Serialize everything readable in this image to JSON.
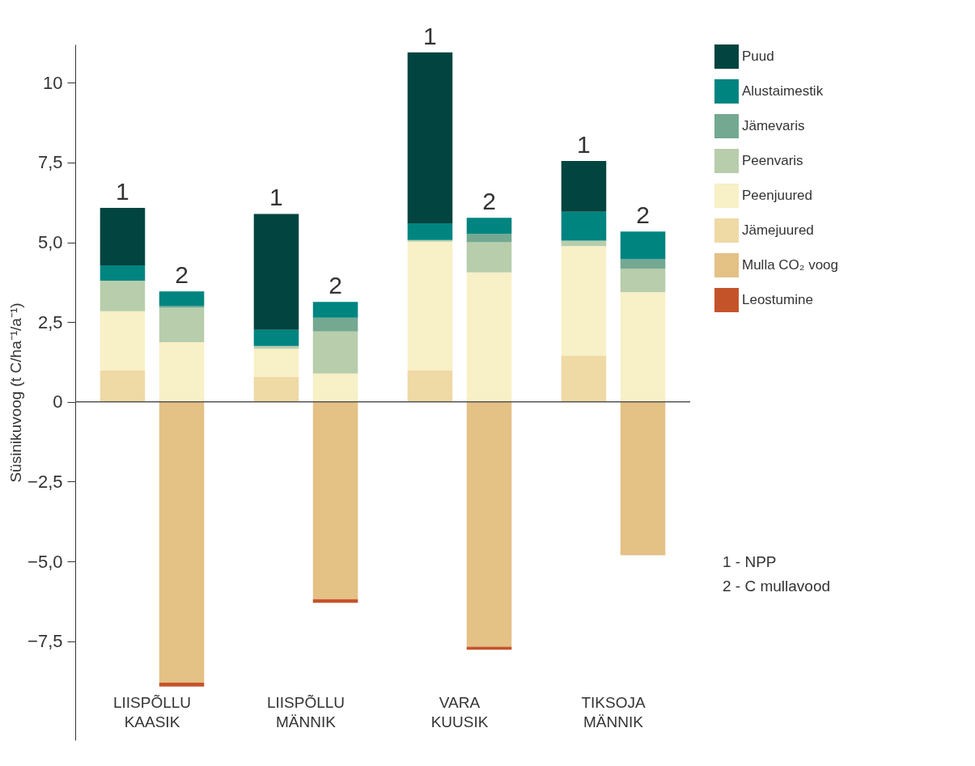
{
  "chart_data": {
    "type": "bar",
    "stacked": true,
    "ylabel": "Süsinikuvoog (t C/ha⁻¹/a⁻¹)",
    "categories": [
      "1",
      "2",
      "1",
      "2",
      "1",
      "2",
      "1",
      "2"
    ],
    "series": [
      {
        "name": "Jämejuured",
        "color": "#efd9a5",
        "values": [
          0.99,
          0,
          0.79,
          0,
          0.99,
          0,
          1.44,
          0
        ]
      },
      {
        "name": "Peenjuured",
        "color": "#f8f0c6",
        "values": [
          1.85,
          1.87,
          0.87,
          0.89,
          4.03,
          4.06,
          3.44,
          3.44
        ]
      },
      {
        "name": "Peenvaris",
        "color": "#b7cdab",
        "values": [
          0.96,
          1.08,
          0.09,
          1.32,
          0.05,
          0.94,
          0.17,
          0.74
        ]
      },
      {
        "name": "Jämevaris",
        "color": "#74a890",
        "values": [
          0,
          0.05,
          0,
          0.43,
          0,
          0.26,
          0,
          0.29
        ]
      },
      {
        "name": "Alustaimestik",
        "color": "#008480",
        "values": [
          0.48,
          0.46,
          0.51,
          0.49,
          0.53,
          0.51,
          0.91,
          0.87
        ]
      },
      {
        "name": "Puud",
        "color": "#02443f",
        "values": [
          1.8,
          0,
          3.63,
          0,
          5.35,
          0,
          1.59,
          0
        ]
      },
      {
        "name": "Mulla CO₂ voog",
        "color": "#e4c185",
        "values": [
          0,
          -8.8,
          0,
          -6.18,
          0,
          -7.67,
          0,
          -4.81
        ]
      },
      {
        "name": "Leostumine",
        "color": "#c5532a",
        "values": [
          0,
          -0.12,
          0,
          -0.12,
          0,
          -0.1,
          0,
          0
        ]
      }
    ],
    "ylim": [
      -10.6,
      11.2
    ],
    "yticks": [
      {
        "value": -7.5,
        "label": "−7,5"
      },
      {
        "value": -5,
        "label": "−5,0"
      },
      {
        "value": -2.5,
        "label": "−2,5"
      },
      0,
      {
        "value": 2.5,
        "label": "2,5"
      },
      {
        "value": 5,
        "label": "5,0"
      },
      {
        "value": 7.5,
        "label": "7,5"
      },
      10
    ],
    "ref_lines": [
      {
        "axis": "y",
        "value": 0,
        "color": "#555555"
      }
    ],
    "annotations": [
      "LIISPÕLLU KAASIK",
      "LIISPÕLLU MÄNNIK",
      "VARA KUUSIK",
      "TIKSOJA MÄNNIK",
      "1 - NPP",
      "2 - C mullavood"
    ],
    "legend": "right",
    "grid": false
  }
}
